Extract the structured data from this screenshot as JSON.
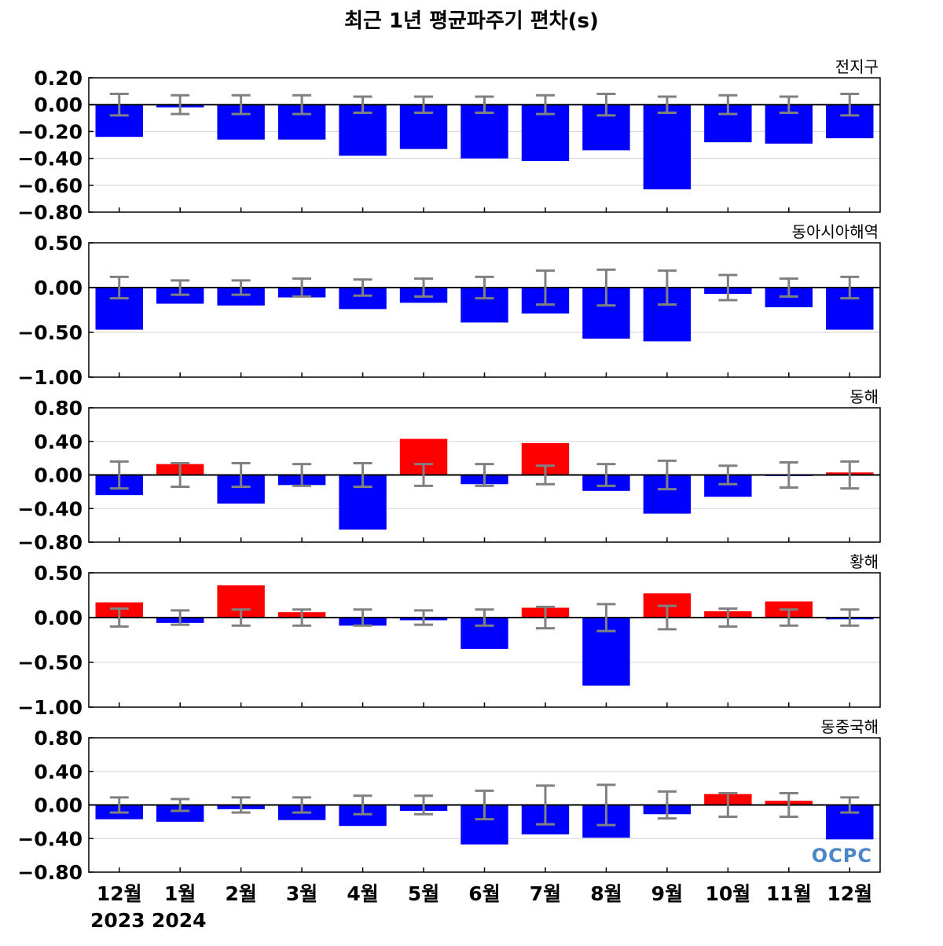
{
  "colors": {
    "positive": "#ff0000",
    "negative": "#0000ff",
    "error_bar": "#808080",
    "zero_line": "#000000",
    "grid": "#d3d3d3"
  },
  "logo": {
    "text": "OCPC"
  },
  "chart_data": {
    "type": "bar",
    "title": "최근 1년 평균파주기 편차(s)",
    "categories": [
      "12월",
      "1월",
      "2월",
      "3월",
      "4월",
      "5월",
      "6월",
      "7월",
      "8월",
      "9월",
      "10월",
      "11월",
      "12월"
    ],
    "year_labels": [
      "2023",
      "2024"
    ],
    "panels": [
      {
        "region": "전지구",
        "ylim": [
          -0.8,
          0.2
        ],
        "yticks": [
          0.2,
          0.0,
          -0.2,
          -0.4,
          -0.6,
          -0.8
        ],
        "ytick_labels": [
          "0.20",
          "0.00",
          "−0.20",
          "−0.40",
          "−0.60",
          "−0.80"
        ],
        "values": [
          -0.24,
          -0.02,
          -0.26,
          -0.26,
          -0.38,
          -0.33,
          -0.4,
          -0.42,
          -0.34,
          -0.63,
          -0.28,
          -0.29,
          -0.25
        ],
        "error": [
          0.08,
          0.07,
          0.07,
          0.07,
          0.06,
          0.06,
          0.06,
          0.07,
          0.08,
          0.06,
          0.07,
          0.06,
          0.08
        ]
      },
      {
        "region": "동아시아해역",
        "ylim": [
          -1.0,
          0.5
        ],
        "yticks": [
          0.5,
          0.0,
          -0.5,
          -1.0
        ],
        "ytick_labels": [
          "0.50",
          "0.00",
          "−0.50",
          "−1.00"
        ],
        "values": [
          -0.47,
          -0.18,
          -0.2,
          -0.11,
          -0.24,
          -0.17,
          -0.39,
          -0.29,
          -0.57,
          -0.6,
          -0.07,
          -0.22,
          -0.47
        ],
        "error": [
          0.12,
          0.08,
          0.08,
          0.1,
          0.09,
          0.1,
          0.12,
          0.19,
          0.2,
          0.19,
          0.14,
          0.1,
          0.12
        ]
      },
      {
        "region": "동해",
        "ylim": [
          -0.8,
          0.8
        ],
        "yticks": [
          0.8,
          0.4,
          0.0,
          -0.4,
          -0.8
        ],
        "ytick_labels": [
          "0.80",
          "0.40",
          "0.00",
          "−0.40",
          "−0.80"
        ],
        "values": [
          -0.24,
          0.13,
          -0.34,
          -0.12,
          -0.65,
          0.43,
          -0.11,
          0.38,
          -0.19,
          -0.46,
          -0.26,
          -0.01,
          0.03
        ],
        "error": [
          0.16,
          0.14,
          0.14,
          0.13,
          0.14,
          0.13,
          0.13,
          0.11,
          0.13,
          0.17,
          0.11,
          0.15,
          0.16
        ]
      },
      {
        "region": "황해",
        "ylim": [
          -1.0,
          0.5
        ],
        "yticks": [
          0.5,
          0.0,
          -0.5,
          -1.0
        ],
        "ytick_labels": [
          "0.50",
          "0.00",
          "−0.50",
          "−1.00"
        ],
        "values": [
          0.17,
          -0.06,
          0.36,
          0.06,
          -0.09,
          -0.03,
          -0.35,
          0.11,
          -0.76,
          0.27,
          0.07,
          0.18,
          -0.02
        ],
        "error": [
          0.1,
          0.08,
          0.09,
          0.09,
          0.09,
          0.08,
          0.09,
          0.12,
          0.15,
          0.13,
          0.1,
          0.09,
          0.09
        ]
      },
      {
        "region": "동중국해",
        "ylim": [
          -0.8,
          0.8
        ],
        "yticks": [
          0.8,
          0.4,
          0.0,
          -0.4,
          -0.8
        ],
        "ytick_labels": [
          "0.80",
          "0.40",
          "0.00",
          "−0.40",
          "−0.80"
        ],
        "values": [
          -0.17,
          -0.2,
          -0.05,
          -0.18,
          -0.25,
          -0.07,
          -0.47,
          -0.35,
          -0.39,
          -0.11,
          0.13,
          0.05,
          -0.41
        ],
        "error": [
          0.09,
          0.07,
          0.09,
          0.09,
          0.11,
          0.11,
          0.17,
          0.23,
          0.24,
          0.16,
          0.14,
          0.14,
          0.09
        ]
      }
    ]
  }
}
